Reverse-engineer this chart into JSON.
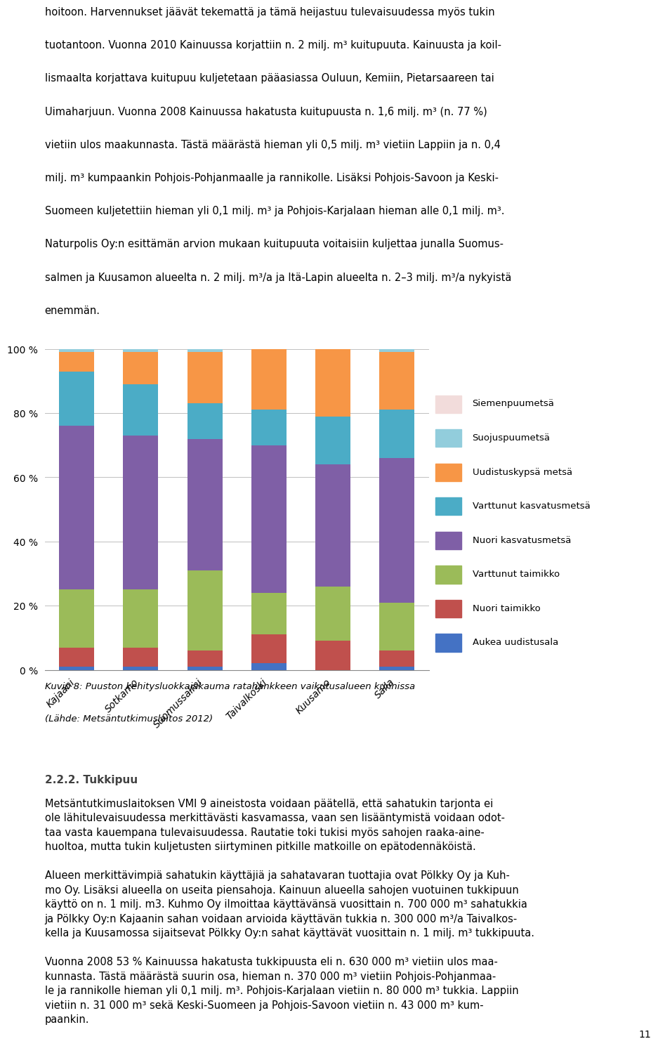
{
  "categories": [
    "Kajaani",
    "Sotkamo",
    "Suomussalmi",
    "Taivalkoski",
    "Kuusamo",
    "Salla"
  ],
  "series": [
    {
      "label": "Aukea uudistusala",
      "color": "#4472C4",
      "values": [
        1,
        1,
        1,
        2,
        0,
        1
      ]
    },
    {
      "label": "Nuori taimikko",
      "color": "#C0504D",
      "values": [
        6,
        6,
        5,
        9,
        9,
        5
      ]
    },
    {
      "label": "Varttunut taimikko",
      "color": "#9BBB59",
      "values": [
        18,
        18,
        25,
        13,
        17,
        15
      ]
    },
    {
      "label": "Nuori kasvatusmetsä",
      "color": "#7F5FA6",
      "values": [
        51,
        48,
        41,
        46,
        38,
        45
      ]
    },
    {
      "label": "Varttunut kasvatusmetsä",
      "color": "#4BACC6",
      "values": [
        17,
        16,
        11,
        11,
        15,
        15
      ]
    },
    {
      "label": "Uudistuskypsä metsä",
      "color": "#F79646",
      "values": [
        6,
        10,
        16,
        19,
        21,
        18
      ]
    },
    {
      "label": "Suojuspuumetsä",
      "color": "#92CDDC",
      "values": [
        1,
        1,
        1,
        0,
        0,
        1
      ]
    },
    {
      "label": "Siemenpuumetsä",
      "color": "#F2DCDB",
      "values": [
        0,
        0,
        0,
        0,
        0,
        0
      ]
    }
  ],
  "yticks": [
    0.0,
    0.2,
    0.4,
    0.6,
    0.8,
    1.0
  ],
  "yticklabels": [
    "0 %",
    "20 %",
    "40 %",
    "60 %",
    "80 %",
    "100 %"
  ],
  "figsize": [
    9.6,
    15.23
  ],
  "dpi": 100,
  "text_above": [
    "hoitoon. Harvennukset jäävät tekemattä ja tämä heijastuu tulevaisuudessa myös tukin",
    "tuotantoon. Vuonna 2010 Kainuussa korjattiin n. 2 milj. m³ kuitupuuta. Kainuusta ja koil-",
    "lismaalta korjattava kuitupuu kuljetetaan pääasiassa Ouluun, Kemiin, Pietarsaareen tai",
    "Uimaharjuun. Vuonna 2008 Kainuussa hakatusta kuitupuusta n. 1,6 milj. m³ (n. 77 %)",
    "vietiin ulos maakunnasta. Tästä määrästä hieman yli 0,5 milj. m³ vietiin Lappiin ja n. 0,4",
    "milj. m³ kumpaankin Pohjois-Pohjanmaalle ja rannikolle. Lisäksi Pohjois-Savoon ja Keski-",
    "Suomeen kuljetettiin hieman yli 0,1 milj. m³ ja Pohjois-Karjalaan hieman alle 0,1 milj. m³.",
    "Naturpolis Oy:n esittämän arvion mukaan kuitupuuta voitaisiin kuljettaa junalla Suomus-",
    "salmen ja Kuusamon alueelta n. 2 milj. m³/a ja Itä-Lapin alueelta n. 2–3 milj. m³/a nykyistä",
    "enemmän."
  ],
  "caption_line1": "Kuvio 8: Puuston kehitysluokkajakauma ratahankkeen vaikutusalueen kunnissa",
  "caption_line2": "(Lähde: Metsäntutkimuslaitos 2012)",
  "section_header": "2.2.2. Tukkipuu",
  "text_below": [
    "Metsäntutkimuslaitoksen VMI 9 aineistosta voidaan päätellä, että sahatukin tarjonta ei",
    "ole lähitulevaisuudessa merkittävästi kasvamassa, vaan sen lisääntymistä voidaan odot-",
    "taa vasta kauempana tulevaisuudessa. Rautatie toki tukisi myös sahojen raaka-aine-",
    "huoltoa, mutta tukin kuljetusten siirtyminen pitkille matkoille on epätodennäköistä.",
    "",
    "Alueen merkittävimpiä sahatukin käyttäjiä ja sahatavaran tuottajia ovat Pölkky Oy ja Kuh-",
    "mo Oy. Lisäksi alueella on useita piensahoja. Kainuun alueella sahojen vuotuinen tukkipuun",
    "käyttö on n. 1 milj. m3. Kuhmo Oy ilmoittaa käyttävänsä vuosittain n. 700 000 m³ sahatukkia",
    "ja Pölkky Oy:n Kajaanin sahan voidaan arvioida käyttävän tukkia n. 300 000 m³/a Taivalkos-",
    "kella ja Kuusamossa sijaitsevat Pölkky Oy:n sahat käyttävät vuosittain n. 1 milj. m³ tukkipuuta.",
    "",
    "Vuonna 2008 53 % Kainuussa hakatusta tukkipuusta eli n. 630 000 m³ vietiin ulos maa-",
    "kunnasta. Tästä määrästä suurin osa, hieman n. 370 000 m³ vietiin Pohjois-Pohjanmaa-",
    "le ja rannikolle hieman yli 0,1 milj. m³. Pohjois-Karjalaan vietiin n. 80 000 m³ tukkia. Lappiin",
    "vietiin n. 31 000 m³ sekä Keski-Suomeen ja Pohjois-Savoon vietiin n. 43 000 m³ kum-",
    "paankin."
  ],
  "page_number": "11"
}
